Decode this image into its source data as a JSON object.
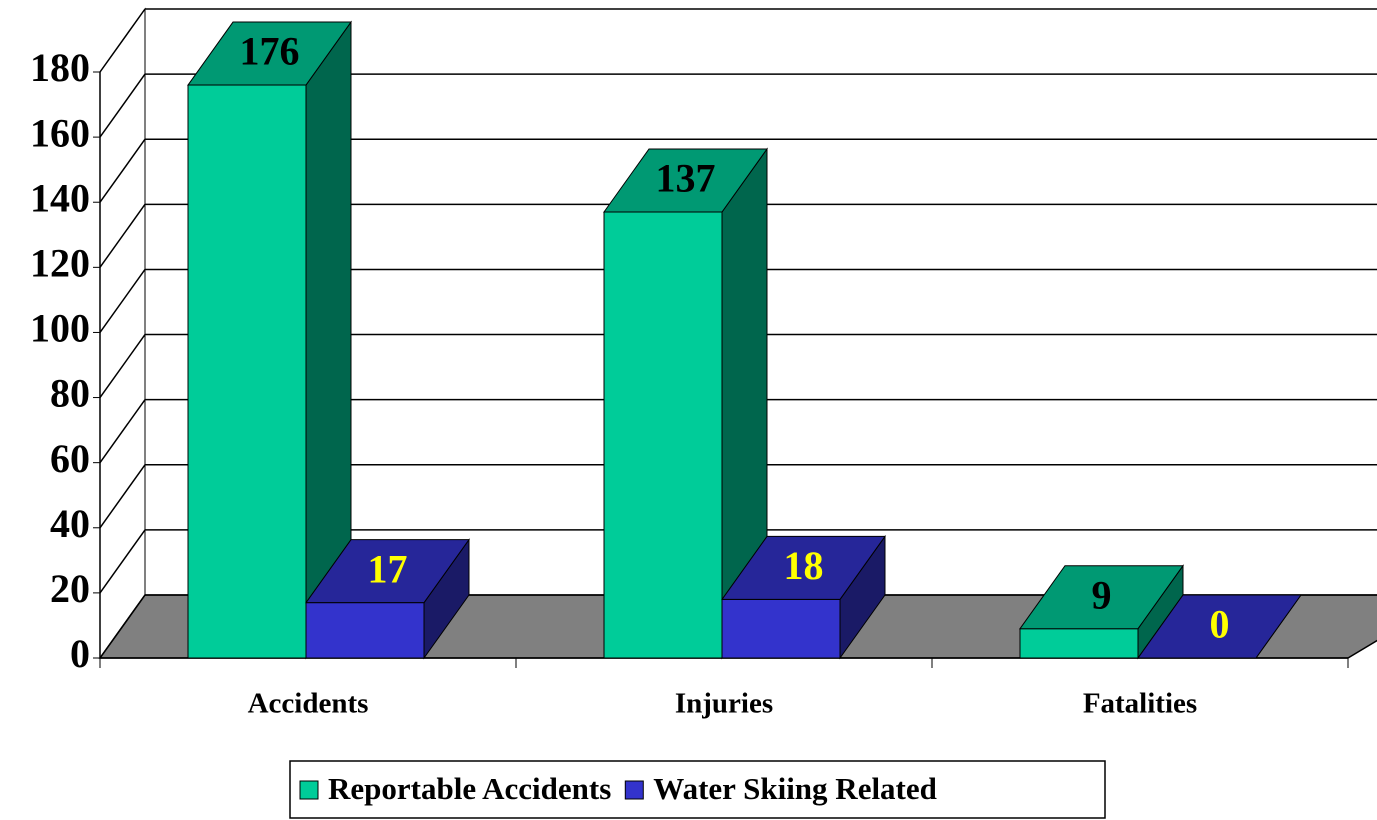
{
  "chart_data": {
    "type": "bar3d",
    "categories": [
      "Accidents",
      "Injuries",
      "Fatalities"
    ],
    "series": [
      {
        "name": "Reportable Accidents",
        "color": "#00cc99",
        "label_color": "#000000",
        "values": [
          176,
          137,
          9
        ]
      },
      {
        "name": "Water Skiing Related",
        "color": "#3333cc",
        "label_color": "#ffff00",
        "values": [
          17,
          18,
          0
        ]
      }
    ],
    "ylim": [
      0,
      180
    ],
    "yticks": [
      0,
      20,
      40,
      60,
      80,
      100,
      120,
      140,
      160,
      180
    ],
    "grid": true,
    "legend": "bottom"
  }
}
